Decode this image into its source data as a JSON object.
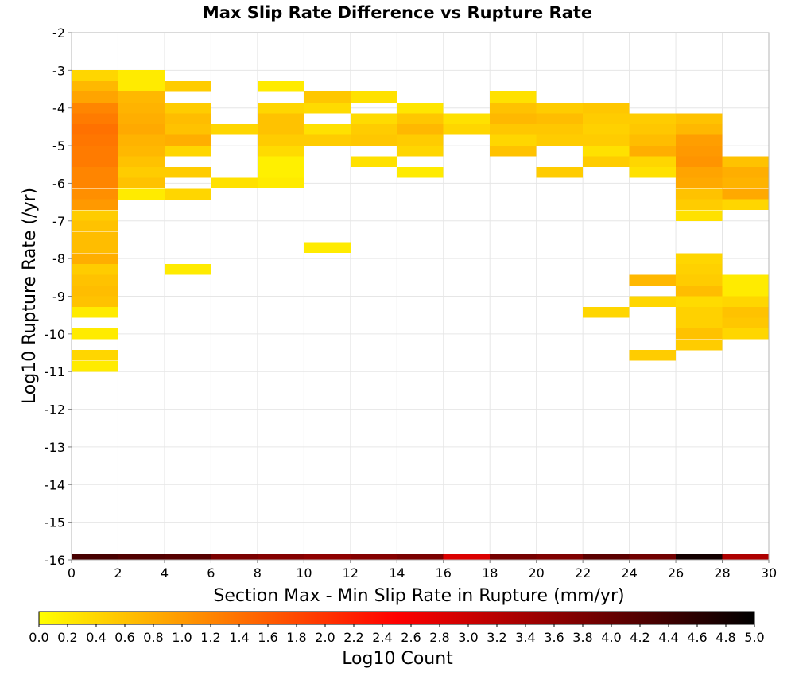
{
  "chart_data": {
    "type": "heatmap",
    "title": "Max Slip Rate Difference vs Rupture Rate",
    "xlabel": "Section Max - Min Slip Rate in Rupture (mm/yr)",
    "ylabel": "Log10 Rupture Rate (/yr)",
    "xlim": [
      0,
      30
    ],
    "ylim": [
      -16,
      -2
    ],
    "x_ticks": [
      "0",
      "2",
      "4",
      "6",
      "8",
      "10",
      "12",
      "14",
      "16",
      "18",
      "20",
      "22",
      "24",
      "26",
      "28",
      "30"
    ],
    "y_ticks": [
      "-2",
      "-3",
      "-4",
      "-5",
      "-6",
      "-7",
      "-8",
      "-9",
      "-10",
      "-11",
      "-12",
      "-13",
      "-14",
      "-15",
      "-16"
    ],
    "grid": true,
    "x_bin_width": 2,
    "y_bin_height": 0.286,
    "colorbar": {
      "label": "Log10 Count",
      "range": [
        0,
        5
      ],
      "ticks": [
        "0.0",
        "0.2",
        "0.4",
        "0.6",
        "0.8",
        "1.0",
        "1.2",
        "1.4",
        "1.6",
        "1.8",
        "2.0",
        "2.2",
        "2.4",
        "2.6",
        "2.8",
        "3.0",
        "3.2",
        "3.4",
        "3.6",
        "3.8",
        "4.0",
        "4.2",
        "4.4",
        "4.6",
        "4.8",
        "5.0"
      ],
      "colors": [
        "#ffff00",
        "#ff8000",
        "#ff0000",
        "#800000",
        "#000000"
      ],
      "placement": "bottom"
    },
    "cells": [
      {
        "x": 0,
        "y": -3.14,
        "v": 0.4
      },
      {
        "x": 0,
        "y": -3.43,
        "v": 0.7
      },
      {
        "x": 0,
        "y": -3.71,
        "v": 0.9
      },
      {
        "x": 0,
        "y": -4.0,
        "v": 1.2
      },
      {
        "x": 0,
        "y": -4.29,
        "v": 1.3
      },
      {
        "x": 0,
        "y": -4.57,
        "v": 1.4
      },
      {
        "x": 0,
        "y": -4.86,
        "v": 1.35
      },
      {
        "x": 0,
        "y": -5.14,
        "v": 1.3
      },
      {
        "x": 0,
        "y": -5.43,
        "v": 1.3
      },
      {
        "x": 0,
        "y": -5.71,
        "v": 1.2
      },
      {
        "x": 0,
        "y": -6.0,
        "v": 1.2
      },
      {
        "x": 0,
        "y": -6.29,
        "v": 1.1
      },
      {
        "x": 0,
        "y": -6.57,
        "v": 1.0
      },
      {
        "x": 0,
        "y": -6.86,
        "v": 0.5
      },
      {
        "x": 0,
        "y": -7.14,
        "v": 0.6
      },
      {
        "x": 0,
        "y": -7.43,
        "v": 0.65
      },
      {
        "x": 0,
        "y": -7.71,
        "v": 0.65
      },
      {
        "x": 0,
        "y": -8.0,
        "v": 0.8
      },
      {
        "x": 0,
        "y": -8.29,
        "v": 0.5
      },
      {
        "x": 0,
        "y": -8.57,
        "v": 0.6
      },
      {
        "x": 0,
        "y": -8.86,
        "v": 0.65
      },
      {
        "x": 0,
        "y": -9.14,
        "v": 0.6
      },
      {
        "x": 0,
        "y": -9.43,
        "v": 0.2
      },
      {
        "x": 0,
        "y": -10.0,
        "v": 0.2
      },
      {
        "x": 0,
        "y": -10.57,
        "v": 0.4
      },
      {
        "x": 0,
        "y": -10.86,
        "v": 0.2
      },
      {
        "x": 2,
        "y": -3.14,
        "v": 0.2
      },
      {
        "x": 2,
        "y": -3.43,
        "v": 0.2
      },
      {
        "x": 2,
        "y": -3.71,
        "v": 0.7
      },
      {
        "x": 2,
        "y": -4.0,
        "v": 0.75
      },
      {
        "x": 2,
        "y": -4.29,
        "v": 0.8
      },
      {
        "x": 2,
        "y": -4.57,
        "v": 0.85
      },
      {
        "x": 2,
        "y": -4.86,
        "v": 0.75
      },
      {
        "x": 2,
        "y": -5.14,
        "v": 0.7
      },
      {
        "x": 2,
        "y": -5.43,
        "v": 0.6
      },
      {
        "x": 2,
        "y": -5.71,
        "v": 0.5
      },
      {
        "x": 2,
        "y": -6.0,
        "v": 0.6
      },
      {
        "x": 2,
        "y": -6.29,
        "v": 0.2
      },
      {
        "x": 4,
        "y": -3.43,
        "v": 0.5
      },
      {
        "x": 4,
        "y": -4.0,
        "v": 0.5
      },
      {
        "x": 4,
        "y": -4.29,
        "v": 0.65
      },
      {
        "x": 4,
        "y": -4.57,
        "v": 0.6
      },
      {
        "x": 4,
        "y": -4.86,
        "v": 0.8
      },
      {
        "x": 4,
        "y": -5.14,
        "v": 0.4
      },
      {
        "x": 4,
        "y": -5.71,
        "v": 0.5
      },
      {
        "x": 4,
        "y": -6.29,
        "v": 0.4
      },
      {
        "x": 4,
        "y": -8.29,
        "v": 0.2
      },
      {
        "x": 6,
        "y": -4.57,
        "v": 0.4
      },
      {
        "x": 6,
        "y": -6.0,
        "v": 0.3
      },
      {
        "x": 8,
        "y": -3.43,
        "v": 0.2
      },
      {
        "x": 8,
        "y": -4.0,
        "v": 0.4
      },
      {
        "x": 8,
        "y": -4.29,
        "v": 0.6
      },
      {
        "x": 8,
        "y": -4.57,
        "v": 0.6
      },
      {
        "x": 8,
        "y": -4.86,
        "v": 0.5
      },
      {
        "x": 8,
        "y": -5.14,
        "v": 0.35
      },
      {
        "x": 8,
        "y": -5.43,
        "v": 0.15
      },
      {
        "x": 8,
        "y": -5.71,
        "v": 0.15
      },
      {
        "x": 8,
        "y": -6.0,
        "v": 0.2
      },
      {
        "x": 10,
        "y": -3.71,
        "v": 0.55
      },
      {
        "x": 10,
        "y": -4.0,
        "v": 0.35
      },
      {
        "x": 10,
        "y": -4.57,
        "v": 0.3
      },
      {
        "x": 10,
        "y": -4.86,
        "v": 0.5
      },
      {
        "x": 10,
        "y": -7.71,
        "v": 0.2
      },
      {
        "x": 12,
        "y": -3.71,
        "v": 0.3
      },
      {
        "x": 12,
        "y": -4.29,
        "v": 0.35
      },
      {
        "x": 12,
        "y": -4.57,
        "v": 0.5
      },
      {
        "x": 12,
        "y": -4.86,
        "v": 0.55
      },
      {
        "x": 12,
        "y": -5.43,
        "v": 0.3
      },
      {
        "x": 14,
        "y": -4.0,
        "v": 0.25
      },
      {
        "x": 14,
        "y": -4.29,
        "v": 0.55
      },
      {
        "x": 14,
        "y": -4.57,
        "v": 0.7
      },
      {
        "x": 14,
        "y": -4.86,
        "v": 0.5
      },
      {
        "x": 14,
        "y": -5.14,
        "v": 0.4
      },
      {
        "x": 14,
        "y": -5.71,
        "v": 0.2
      },
      {
        "x": 16,
        "y": -4.29,
        "v": 0.3
      },
      {
        "x": 16,
        "y": -4.57,
        "v": 0.4
      },
      {
        "x": 18,
        "y": -3.71,
        "v": 0.3
      },
      {
        "x": 18,
        "y": -4.0,
        "v": 0.6
      },
      {
        "x": 18,
        "y": -4.29,
        "v": 0.7
      },
      {
        "x": 18,
        "y": -4.57,
        "v": 0.55
      },
      {
        "x": 18,
        "y": -4.86,
        "v": 0.4
      },
      {
        "x": 18,
        "y": -5.14,
        "v": 0.6
      },
      {
        "x": 20,
        "y": -4.0,
        "v": 0.5
      },
      {
        "x": 20,
        "y": -4.29,
        "v": 0.65
      },
      {
        "x": 20,
        "y": -4.57,
        "v": 0.55
      },
      {
        "x": 20,
        "y": -4.86,
        "v": 0.5
      },
      {
        "x": 20,
        "y": -5.71,
        "v": 0.5
      },
      {
        "x": 22,
        "y": -4.0,
        "v": 0.55
      },
      {
        "x": 22,
        "y": -4.29,
        "v": 0.5
      },
      {
        "x": 22,
        "y": -4.57,
        "v": 0.45
      },
      {
        "x": 22,
        "y": -4.86,
        "v": 0.5
      },
      {
        "x": 22,
        "y": -5.14,
        "v": 0.3
      },
      {
        "x": 22,
        "y": -5.43,
        "v": 0.5
      },
      {
        "x": 22,
        "y": -9.43,
        "v": 0.4
      },
      {
        "x": 24,
        "y": -4.29,
        "v": 0.5
      },
      {
        "x": 24,
        "y": -4.57,
        "v": 0.55
      },
      {
        "x": 24,
        "y": -4.86,
        "v": 0.65
      },
      {
        "x": 24,
        "y": -5.14,
        "v": 0.8
      },
      {
        "x": 24,
        "y": -5.43,
        "v": 0.4
      },
      {
        "x": 24,
        "y": -5.71,
        "v": 0.3
      },
      {
        "x": 24,
        "y": -8.57,
        "v": 0.7
      },
      {
        "x": 24,
        "y": -9.14,
        "v": 0.4
      },
      {
        "x": 24,
        "y": -10.57,
        "v": 0.5
      },
      {
        "x": 26,
        "y": -4.29,
        "v": 0.6
      },
      {
        "x": 26,
        "y": -4.57,
        "v": 0.7
      },
      {
        "x": 26,
        "y": -4.86,
        "v": 0.95
      },
      {
        "x": 26,
        "y": -5.14,
        "v": 1.0
      },
      {
        "x": 26,
        "y": -5.43,
        "v": 1.05
      },
      {
        "x": 26,
        "y": -5.71,
        "v": 0.9
      },
      {
        "x": 26,
        "y": -6.0,
        "v": 0.85
      },
      {
        "x": 26,
        "y": -6.29,
        "v": 0.6
      },
      {
        "x": 26,
        "y": -6.57,
        "v": 0.5
      },
      {
        "x": 26,
        "y": -6.86,
        "v": 0.3
      },
      {
        "x": 26,
        "y": -8.0,
        "v": 0.4
      },
      {
        "x": 26,
        "y": -8.29,
        "v": 0.45
      },
      {
        "x": 26,
        "y": -8.57,
        "v": 0.5
      },
      {
        "x": 26,
        "y": -8.86,
        "v": 0.65
      },
      {
        "x": 26,
        "y": -9.14,
        "v": 0.35
      },
      {
        "x": 26,
        "y": -9.43,
        "v": 0.45
      },
      {
        "x": 26,
        "y": -9.71,
        "v": 0.45
      },
      {
        "x": 26,
        "y": -10.0,
        "v": 0.6
      },
      {
        "x": 26,
        "y": -10.29,
        "v": 0.5
      },
      {
        "x": 28,
        "y": -5.43,
        "v": 0.6
      },
      {
        "x": 28,
        "y": -5.71,
        "v": 0.8
      },
      {
        "x": 28,
        "y": -6.0,
        "v": 0.75
      },
      {
        "x": 28,
        "y": -6.29,
        "v": 0.85
      },
      {
        "x": 28,
        "y": -6.57,
        "v": 0.4
      },
      {
        "x": 28,
        "y": -8.57,
        "v": 0.2
      },
      {
        "x": 28,
        "y": -8.86,
        "v": 0.2
      },
      {
        "x": 28,
        "y": -9.14,
        "v": 0.4
      },
      {
        "x": 28,
        "y": -9.43,
        "v": 0.6
      },
      {
        "x": 28,
        "y": -9.71,
        "v": 0.55
      },
      {
        "x": 28,
        "y": -10.0,
        "v": 0.4
      }
    ],
    "bottom_row": [
      {
        "x": 0,
        "v": 4.3
      },
      {
        "x": 2,
        "v": 4.2
      },
      {
        "x": 4,
        "v": 4.15
      },
      {
        "x": 6,
        "v": 3.8
      },
      {
        "x": 8,
        "v": 3.7
      },
      {
        "x": 10,
        "v": 3.6
      },
      {
        "x": 12,
        "v": 3.7
      },
      {
        "x": 14,
        "v": 3.8
      },
      {
        "x": 16,
        "v": 2.85
      },
      {
        "x": 18,
        "v": 3.85
      },
      {
        "x": 20,
        "v": 3.75
      },
      {
        "x": 22,
        "v": 4.1
      },
      {
        "x": 24,
        "v": 3.9
      },
      {
        "x": 26,
        "v": 4.8
      },
      {
        "x": 28,
        "v": 3.3
      }
    ]
  }
}
